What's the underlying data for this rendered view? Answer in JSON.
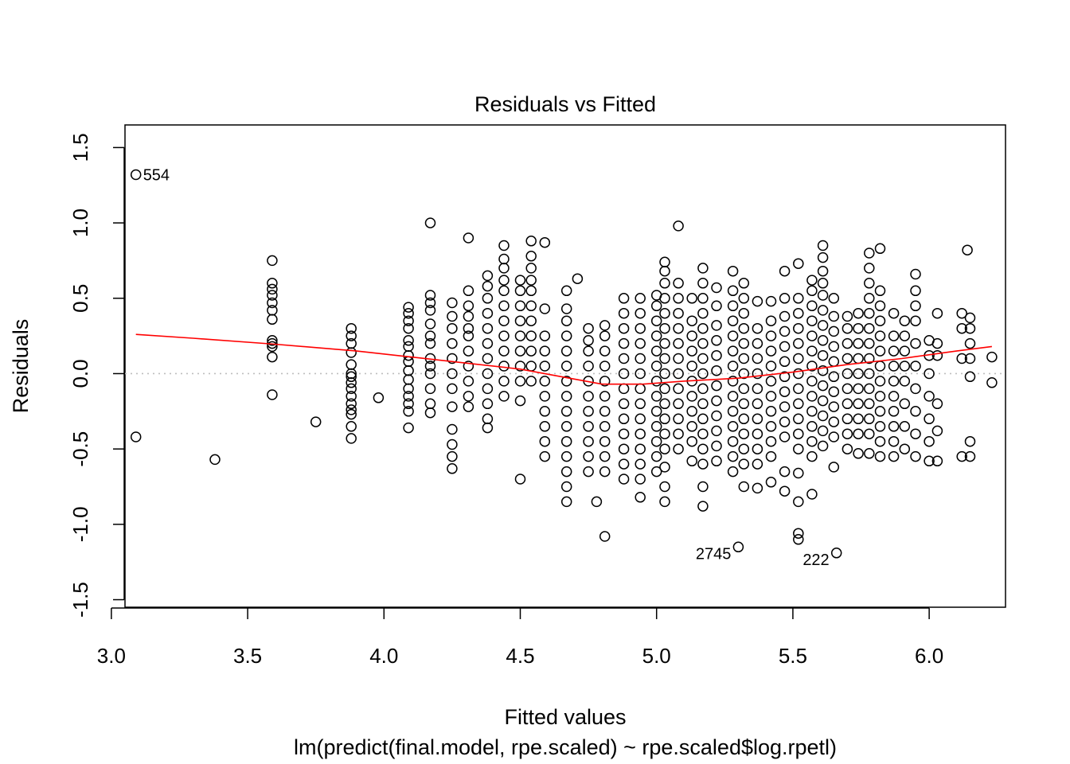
{
  "chart_data": {
    "type": "scatter",
    "title": "Residuals vs Fitted",
    "xlabel": "Fitted values",
    "ylabel": "Residuals",
    "subtitle": "lm(predict(final.model, rpe.scaled) ~ rpe.scaled$log.rpetl)",
    "xlim": [
      3.05,
      6.28
    ],
    "ylim": [
      -1.55,
      1.65
    ],
    "x_ticks": [
      3.0,
      3.5,
      4.0,
      4.5,
      5.0,
      5.5,
      6.0
    ],
    "x_tick_labels": [
      "3.0",
      "3.5",
      "4.0",
      "4.5",
      "5.0",
      "5.5",
      "6.0"
    ],
    "y_ticks": [
      -1.5,
      -1.0,
      -0.5,
      0.0,
      0.5,
      1.0,
      1.5
    ],
    "y_tick_labels": [
      "-1.5",
      "-1.0",
      "-0.5",
      "0.0",
      "0.5",
      "1.0",
      "1.5"
    ],
    "reference_line": {
      "y": 0,
      "style": "dotted",
      "color": "#bebebe"
    },
    "smooth": {
      "color": "#ff0000",
      "x": [
        3.09,
        3.3,
        3.6,
        3.9,
        4.1,
        4.3,
        4.5,
        4.65,
        4.8,
        4.95,
        5.1,
        5.3,
        5.5,
        5.7,
        5.9,
        6.1,
        6.23
      ],
      "y": [
        0.26,
        0.235,
        0.195,
        0.15,
        0.11,
        0.07,
        0.03,
        -0.02,
        -0.07,
        -0.07,
        -0.05,
        -0.03,
        0.01,
        0.06,
        0.1,
        0.15,
        0.18
      ]
    },
    "labelled_points": [
      {
        "label": "554",
        "x": 3.09,
        "y": 1.32,
        "side": "right"
      },
      {
        "label": "2745",
        "x": 5.3,
        "y": -1.15,
        "side": "left"
      },
      {
        "label": "222",
        "x": 5.66,
        "y": -1.19,
        "side": "left"
      }
    ],
    "point_columns": [
      {
        "x": 3.09,
        "y": [
          -0.42
        ]
      },
      {
        "x": 3.38,
        "y": [
          -0.57
        ]
      },
      {
        "x": 3.59,
        "y": [
          -0.14,
          0.11,
          0.18,
          0.2,
          0.22,
          0.36,
          0.42,
          0.47,
          0.52,
          0.56,
          0.6,
          0.75
        ]
      },
      {
        "x": 3.75,
        "y": [
          -0.32
        ]
      },
      {
        "x": 3.88,
        "y": [
          -0.43,
          -0.35,
          -0.27,
          -0.24,
          -0.2,
          -0.15,
          -0.1,
          -0.06,
          -0.02,
          0.0,
          0.06,
          0.14,
          0.2,
          0.25,
          0.3
        ]
      },
      {
        "x": 3.98,
        "y": [
          -0.16
        ]
      },
      {
        "x": 4.09,
        "y": [
          -0.36,
          -0.25,
          -0.2,
          -0.15,
          -0.1,
          -0.04,
          0.02,
          0.08,
          0.12,
          0.18,
          0.22,
          0.3,
          0.35,
          0.4,
          0.44
        ]
      },
      {
        "x": 4.17,
        "y": [
          -0.26,
          -0.2,
          -0.1,
          0.0,
          0.05,
          0.1,
          0.2,
          0.25,
          0.33,
          0.42,
          0.47,
          0.52,
          1.0
        ]
      },
      {
        "x": 4.25,
        "y": [
          -0.63,
          -0.55,
          -0.47,
          -0.37,
          -0.22,
          -0.1,
          0.0,
          0.1,
          0.2,
          0.3,
          0.38,
          0.47
        ]
      },
      {
        "x": 4.31,
        "y": [
          -0.22,
          -0.15,
          -0.05,
          0.05,
          0.15,
          0.25,
          0.3,
          0.38,
          0.45,
          0.55,
          0.9
        ]
      },
      {
        "x": 4.38,
        "y": [
          -0.36,
          -0.3,
          -0.2,
          -0.1,
          0.0,
          0.1,
          0.2,
          0.3,
          0.4,
          0.5,
          0.58,
          0.65
        ]
      },
      {
        "x": 4.44,
        "y": [
          -0.15,
          -0.05,
          0.05,
          0.15,
          0.25,
          0.35,
          0.45,
          0.55,
          0.62,
          0.7,
          0.76,
          0.85
        ]
      },
      {
        "x": 4.5,
        "y": [
          -0.7,
          -0.18,
          -0.05,
          0.05,
          0.15,
          0.25,
          0.35,
          0.45,
          0.55,
          0.62
        ]
      },
      {
        "x": 4.54,
        "y": [
          -0.05,
          0.05,
          0.15,
          0.25,
          0.35,
          0.45,
          0.55,
          0.62,
          0.7,
          0.78,
          0.88
        ]
      },
      {
        "x": 4.59,
        "y": [
          -0.55,
          -0.45,
          -0.35,
          -0.25,
          -0.15,
          -0.05,
          0.05,
          0.15,
          0.25,
          0.43,
          0.87
        ]
      },
      {
        "x": 4.67,
        "y": [
          -0.85,
          -0.75,
          -0.65,
          -0.55,
          -0.45,
          -0.35,
          -0.25,
          -0.15,
          -0.05,
          0.05,
          0.15,
          0.25,
          0.35,
          0.43,
          0.55
        ]
      },
      {
        "x": 4.71,
        "y": [
          0.63
        ]
      },
      {
        "x": 4.75,
        "y": [
          -0.65,
          -0.55,
          -0.45,
          -0.35,
          -0.25,
          -0.15,
          -0.05,
          0.05,
          0.15,
          0.22,
          0.3
        ]
      },
      {
        "x": 4.78,
        "y": [
          -0.85
        ]
      },
      {
        "x": 4.81,
        "y": [
          -1.08,
          -0.65,
          -0.55,
          -0.45,
          -0.35,
          -0.25,
          -0.15,
          -0.05,
          0.05,
          0.15,
          0.25,
          0.32
        ]
      },
      {
        "x": 4.88,
        "y": [
          -0.7,
          -0.6,
          -0.5,
          -0.4,
          -0.3,
          -0.2,
          -0.1,
          0.0,
          0.1,
          0.2,
          0.3,
          0.4,
          0.5
        ]
      },
      {
        "x": 4.94,
        "y": [
          -0.82,
          -0.7,
          -0.6,
          -0.5,
          -0.4,
          -0.3,
          -0.2,
          -0.1,
          0.0,
          0.1,
          0.2,
          0.3,
          0.4,
          0.5
        ]
      },
      {
        "x": 5.0,
        "y": [
          -0.65,
          -0.55,
          -0.45,
          -0.35,
          -0.25,
          -0.15,
          -0.05,
          0.05,
          0.15,
          0.25,
          0.35,
          0.45,
          0.52
        ]
      },
      {
        "x": 5.03,
        "y": [
          -0.85,
          -0.75,
          -0.62,
          -0.5,
          -0.4,
          -0.3,
          -0.2,
          -0.1,
          0.0,
          0.1,
          0.2,
          0.3,
          0.4,
          0.5,
          0.6,
          0.68,
          0.74
        ]
      },
      {
        "x": 5.08,
        "y": [
          -0.5,
          -0.4,
          -0.3,
          -0.2,
          -0.1,
          0.0,
          0.1,
          0.2,
          0.3,
          0.4,
          0.5,
          0.6,
          0.98
        ]
      },
      {
        "x": 5.13,
        "y": [
          -0.58,
          -0.45,
          -0.35,
          -0.25,
          -0.15,
          -0.05,
          0.05,
          0.15,
          0.25,
          0.35,
          0.5
        ]
      },
      {
        "x": 5.17,
        "y": [
          -0.88,
          -0.75,
          -0.6,
          -0.5,
          -0.4,
          -0.3,
          -0.2,
          -0.1,
          0.0,
          0.1,
          0.2,
          0.3,
          0.4,
          0.5,
          0.6,
          0.7
        ]
      },
      {
        "x": 5.22,
        "y": [
          -0.58,
          -0.48,
          -0.38,
          -0.28,
          -0.18,
          -0.08,
          0.02,
          0.12,
          0.22,
          0.32,
          0.45,
          0.57
        ]
      },
      {
        "x": 5.28,
        "y": [
          -0.65,
          -0.55,
          -0.45,
          -0.35,
          -0.25,
          -0.15,
          -0.05,
          0.05,
          0.15,
          0.25,
          0.35,
          0.45,
          0.55,
          0.68
        ]
      },
      {
        "x": 5.32,
        "y": [
          -0.75,
          -0.6,
          -0.5,
          -0.4,
          -0.3,
          -0.2,
          -0.1,
          0.0,
          0.1,
          0.2,
          0.3,
          0.4,
          0.5,
          0.6
        ]
      },
      {
        "x": 5.37,
        "y": [
          -0.76,
          -0.6,
          -0.5,
          -0.4,
          -0.3,
          -0.2,
          -0.1,
          0.0,
          0.1,
          0.2,
          0.3,
          0.48
        ]
      },
      {
        "x": 5.42,
        "y": [
          -0.72,
          -0.55,
          -0.45,
          -0.35,
          -0.25,
          -0.15,
          -0.05,
          0.05,
          0.15,
          0.25,
          0.35,
          0.48
        ]
      },
      {
        "x": 5.47,
        "y": [
          -0.78,
          -0.65,
          -0.42,
          -0.32,
          -0.22,
          -0.12,
          -0.02,
          0.08,
          0.18,
          0.28,
          0.38,
          0.5,
          0.68
        ]
      },
      {
        "x": 5.52,
        "y": [
          -1.1,
          -1.06,
          -0.85,
          -0.66,
          -0.5,
          -0.4,
          -0.3,
          -0.2,
          -0.1,
          0.0,
          0.1,
          0.2,
          0.3,
          0.4,
          0.5,
          0.73
        ]
      },
      {
        "x": 5.57,
        "y": [
          -0.8,
          -0.55,
          -0.45,
          -0.35,
          -0.25,
          -0.15,
          -0.05,
          0.05,
          0.15,
          0.25,
          0.35,
          0.45,
          0.55,
          0.62
        ]
      },
      {
        "x": 5.61,
        "y": [
          -0.48,
          -0.38,
          -0.28,
          -0.18,
          -0.08,
          0.02,
          0.12,
          0.22,
          0.32,
          0.42,
          0.52,
          0.6,
          0.68,
          0.77,
          0.85
        ]
      },
      {
        "x": 5.65,
        "y": [
          -0.62,
          -0.42,
          -0.32,
          -0.22,
          -0.12,
          -0.02,
          0.08,
          0.18,
          0.28,
          0.38,
          0.5
        ]
      },
      {
        "x": 5.7,
        "y": [
          -0.5,
          -0.4,
          -0.3,
          -0.2,
          -0.1,
          0.0,
          0.1,
          0.2,
          0.3,
          0.38
        ]
      },
      {
        "x": 5.74,
        "y": [
          -0.53,
          -0.4,
          -0.3,
          -0.2,
          -0.1,
          0.0,
          0.1,
          0.2,
          0.3,
          0.4
        ]
      },
      {
        "x": 5.78,
        "y": [
          -0.53,
          -0.4,
          -0.3,
          -0.2,
          -0.1,
          0.0,
          0.1,
          0.2,
          0.3,
          0.4,
          0.5,
          0.6,
          0.7,
          0.8
        ]
      },
      {
        "x": 5.82,
        "y": [
          -0.55,
          -0.45,
          -0.35,
          -0.25,
          -0.15,
          -0.05,
          0.05,
          0.15,
          0.25,
          0.35,
          0.45,
          0.55,
          0.83
        ]
      },
      {
        "x": 5.87,
        "y": [
          -0.55,
          -0.45,
          -0.35,
          -0.25,
          -0.15,
          -0.05,
          0.05,
          0.15,
          0.25,
          0.4
        ]
      },
      {
        "x": 5.91,
        "y": [
          -0.5,
          -0.35,
          -0.2,
          -0.05,
          0.05,
          0.15,
          0.25,
          0.35
        ]
      },
      {
        "x": 5.95,
        "y": [
          -0.55,
          -0.4,
          -0.25,
          -0.1,
          0.05,
          0.2,
          0.35,
          0.45,
          0.55,
          0.66
        ]
      },
      {
        "x": 6.0,
        "y": [
          -0.58,
          -0.45,
          -0.3,
          -0.15,
          0.0,
          0.12,
          0.22
        ]
      },
      {
        "x": 6.03,
        "y": [
          -0.58,
          -0.38,
          -0.2,
          0.12,
          0.2,
          0.4
        ]
      },
      {
        "x": 6.12,
        "y": [
          -0.55,
          0.1,
          0.3,
          0.4
        ]
      },
      {
        "x": 6.14,
        "y": [
          0.82
        ]
      },
      {
        "x": 6.15,
        "y": [
          -0.55,
          -0.45,
          -0.02,
          0.1,
          0.2,
          0.3,
          0.37
        ]
      },
      {
        "x": 6.23,
        "y": [
          -0.06,
          0.11
        ]
      }
    ]
  }
}
